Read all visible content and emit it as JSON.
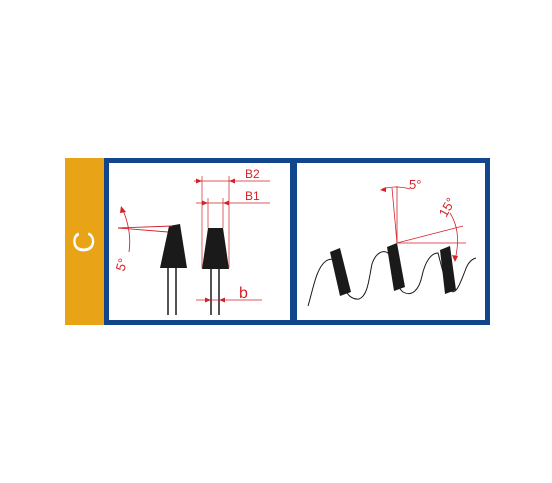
{
  "colors": {
    "orange": "#e8a317",
    "blue": "#12468c",
    "red": "#d2232a",
    "black": "#1a1a1a"
  },
  "tab": {
    "letter": "C"
  },
  "left_panel": {
    "label_b2": "B2",
    "label_b1": "B1",
    "label_b": "b",
    "label_angle": "5°"
  },
  "right_panel": {
    "label_angle_top": "5°",
    "label_angle_side": "15°"
  }
}
